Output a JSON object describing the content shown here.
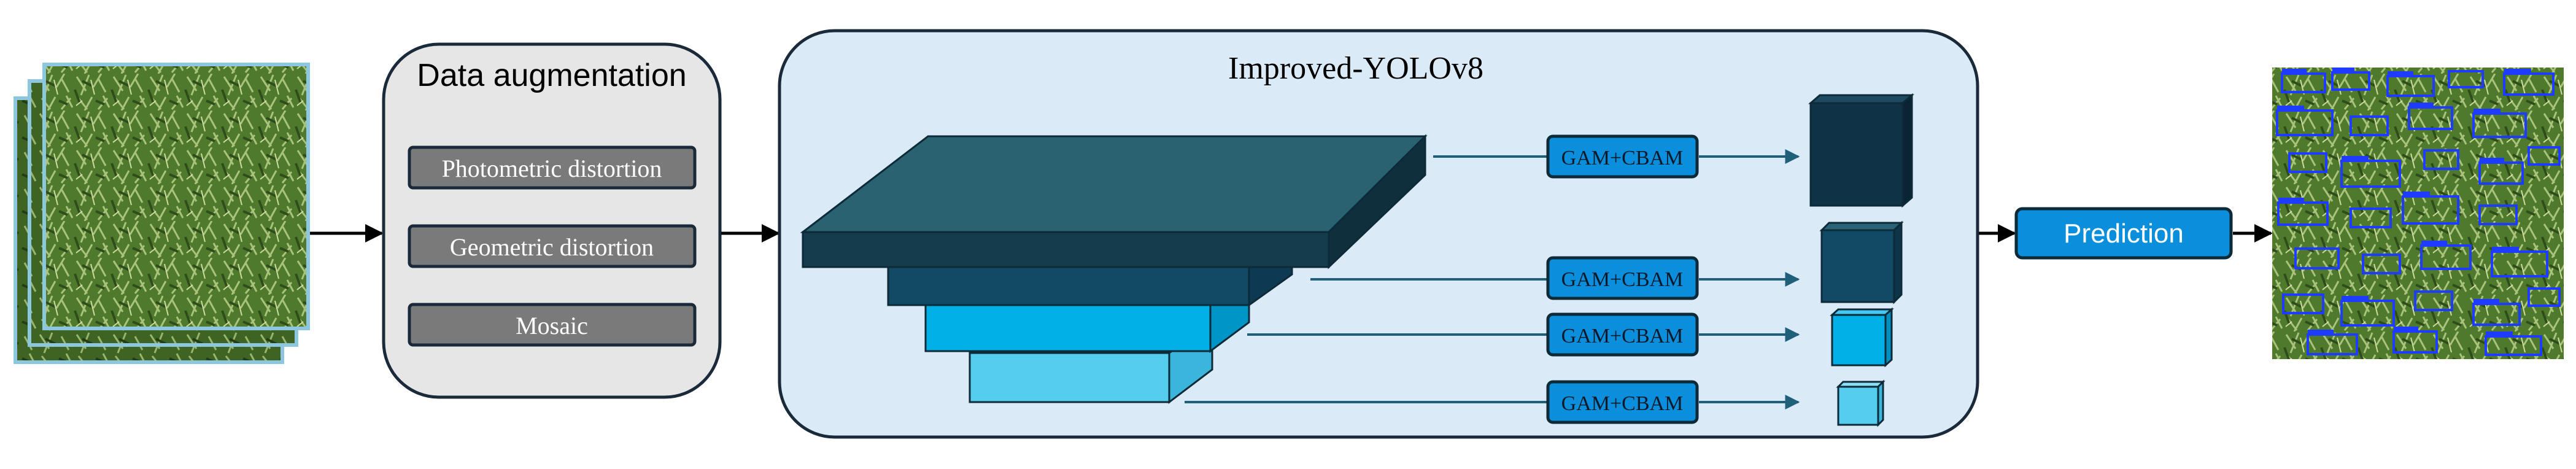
{
  "augmentation": {
    "title": "Data augmentation",
    "steps": [
      {
        "label": "Photometric distortion"
      },
      {
        "label": "Geometric distortion"
      },
      {
        "label": "Mosaic"
      }
    ]
  },
  "model": {
    "title": "Improved-YOLOv8",
    "attention_modules": [
      {
        "label": "GAM+CBAM"
      },
      {
        "label": "GAM+CBAM"
      },
      {
        "label": "GAM+CBAM"
      },
      {
        "label": "GAM+CBAM"
      }
    ]
  },
  "output": {
    "prediction_label": "Prediction"
  },
  "colors": {
    "augmentation_panel": "#e6e6e6",
    "augmentation_button": "#7a7a7a",
    "model_panel": "#dbeaf7",
    "module_button": "#0b8fdc",
    "prediction_button": "#0b8fdc",
    "arrow": "#1f5f7a",
    "layer_dark": "#1f5566",
    "layer_mid": "#124a66",
    "layer_cyan": "#00b0e6",
    "layer_light": "#55cdee",
    "feature_dark": "#0f3246",
    "crop_green": "#5f8a3a",
    "detection_blue": "#1e3cff"
  }
}
